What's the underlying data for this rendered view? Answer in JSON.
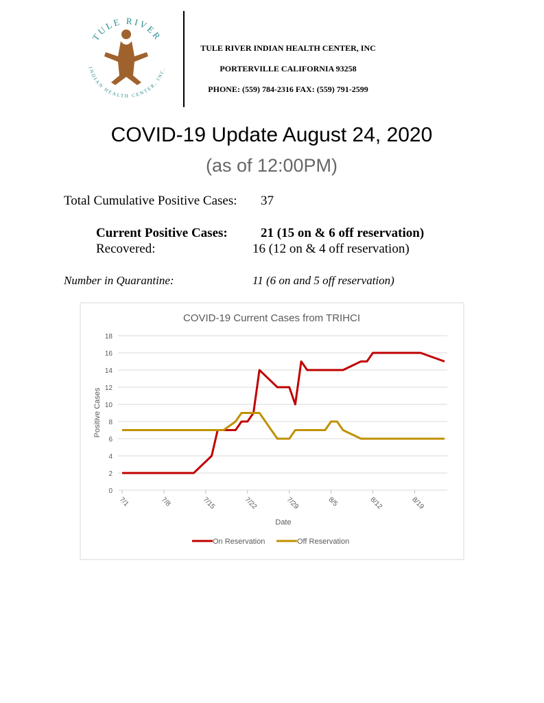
{
  "logo": {
    "top_text": "TULE RIVER",
    "bottom_text": "INDIAN HEALTH CENTER, INC."
  },
  "header": {
    "lines": [
      "TULE RIVER INDIAN HEALTH CENTER, INC",
      "PORTERVILLE CALIFORNIA 93258",
      "PHONE: (559) 784-2316 FAX: (559) 791-2599"
    ]
  },
  "title": "COVID-19 Update August 24, 2020",
  "subtitle": "(as of 12:00PM)",
  "stats": [
    {
      "label": "Total Cumulative Positive Cases:",
      "value": "37"
    },
    {
      "label": "Current Positive Cases:",
      "value": "21 (15 on & 6 off reservation)"
    },
    {
      "label": "Recovered:",
      "value": "16 (12 on & 4 off reservation)"
    },
    {
      "label": "Number in Quarantine:",
      "value": "11 (6 on and 5 off reservation)"
    }
  ],
  "chart_data": {
    "type": "line",
    "title": "COVID-19 Current Cases from TRIHCI",
    "x_label": "Date",
    "y_label": "Positive Cases",
    "x": [
      "7/1",
      "7/13",
      "7/16",
      "7/17",
      "7/18",
      "7/20",
      "7/21",
      "7/22",
      "7/23",
      "7/24",
      "7/27",
      "7/29",
      "7/30",
      "7/31",
      "8/1",
      "8/4",
      "8/5",
      "8/6",
      "8/7",
      "8/10",
      "8/11",
      "8/12",
      "8/20",
      "8/24"
    ],
    "xlim": [
      "7/1",
      "8/24"
    ],
    "xticks": [
      "7/1",
      "7/8",
      "7/15",
      "7/22",
      "7/29",
      "8/5",
      "8/12",
      "8/19"
    ],
    "ylim": [
      0,
      18
    ],
    "yticks": [
      0,
      2,
      4,
      6,
      8,
      10,
      12,
      14,
      16,
      18
    ],
    "grid": true,
    "legend": "bottom",
    "series": [
      {
        "name": "On Reservation",
        "color": "#c00000",
        "values": [
          2,
          2,
          4,
          7,
          7,
          7,
          8,
          8,
          9,
          14,
          12,
          12,
          10,
          15,
          14,
          14,
          14,
          14,
          14,
          15,
          15,
          16,
          16,
          15
        ]
      },
      {
        "name": "Off Reservation",
        "color": "#bf9000",
        "values": [
          7,
          7,
          7,
          7,
          7,
          8,
          9,
          9,
          9,
          9,
          6,
          6,
          7,
          7,
          7,
          7,
          8,
          8,
          7,
          6,
          6,
          6,
          6,
          6
        ]
      }
    ]
  }
}
